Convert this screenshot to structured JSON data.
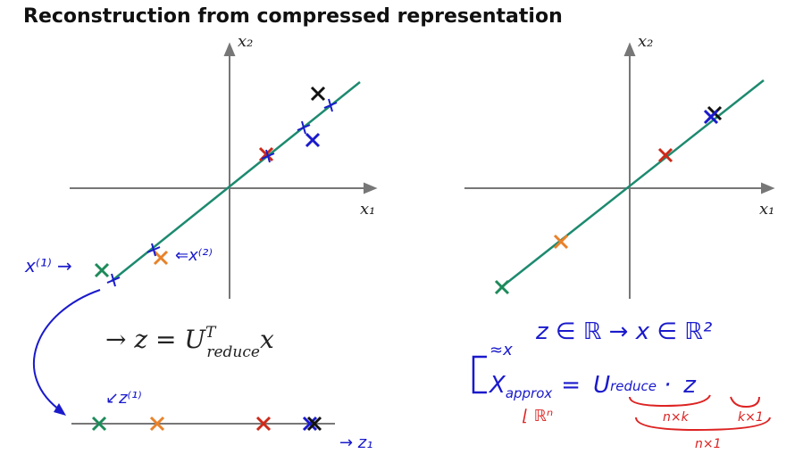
{
  "header": {
    "title": "Reconstruction from compressed representation"
  },
  "left_plot": {
    "x_label": "x₁",
    "y_label": "x₂",
    "note_x1": "x⁽¹⁾ →",
    "note_x2": "⇐x⁽²⁾"
  },
  "right_plot": {
    "x_label": "x₁",
    "y_label": "x₂"
  },
  "number_line": {
    "label": "→ z₁",
    "note_z1": "↙z⁽¹⁾"
  },
  "formula": {
    "lead": "→ z = U",
    "sup": "T",
    "sub": "reduce",
    "tail": "x"
  },
  "notes": {
    "spaces": "z ∈ ℝ  →  x ∈ ℝ²",
    "approx_mark": "≈x",
    "lhs": "X",
    "lhs_sub": "approx",
    "eq": "=",
    "rhs": "U",
    "rhs_sub": "reduce",
    "dot": "·",
    "z": "z",
    "dim_x": "⌊ ℝⁿ",
    "dim_u": "n×k",
    "dim_z": "k×1",
    "dim_result": "n×1"
  }
}
